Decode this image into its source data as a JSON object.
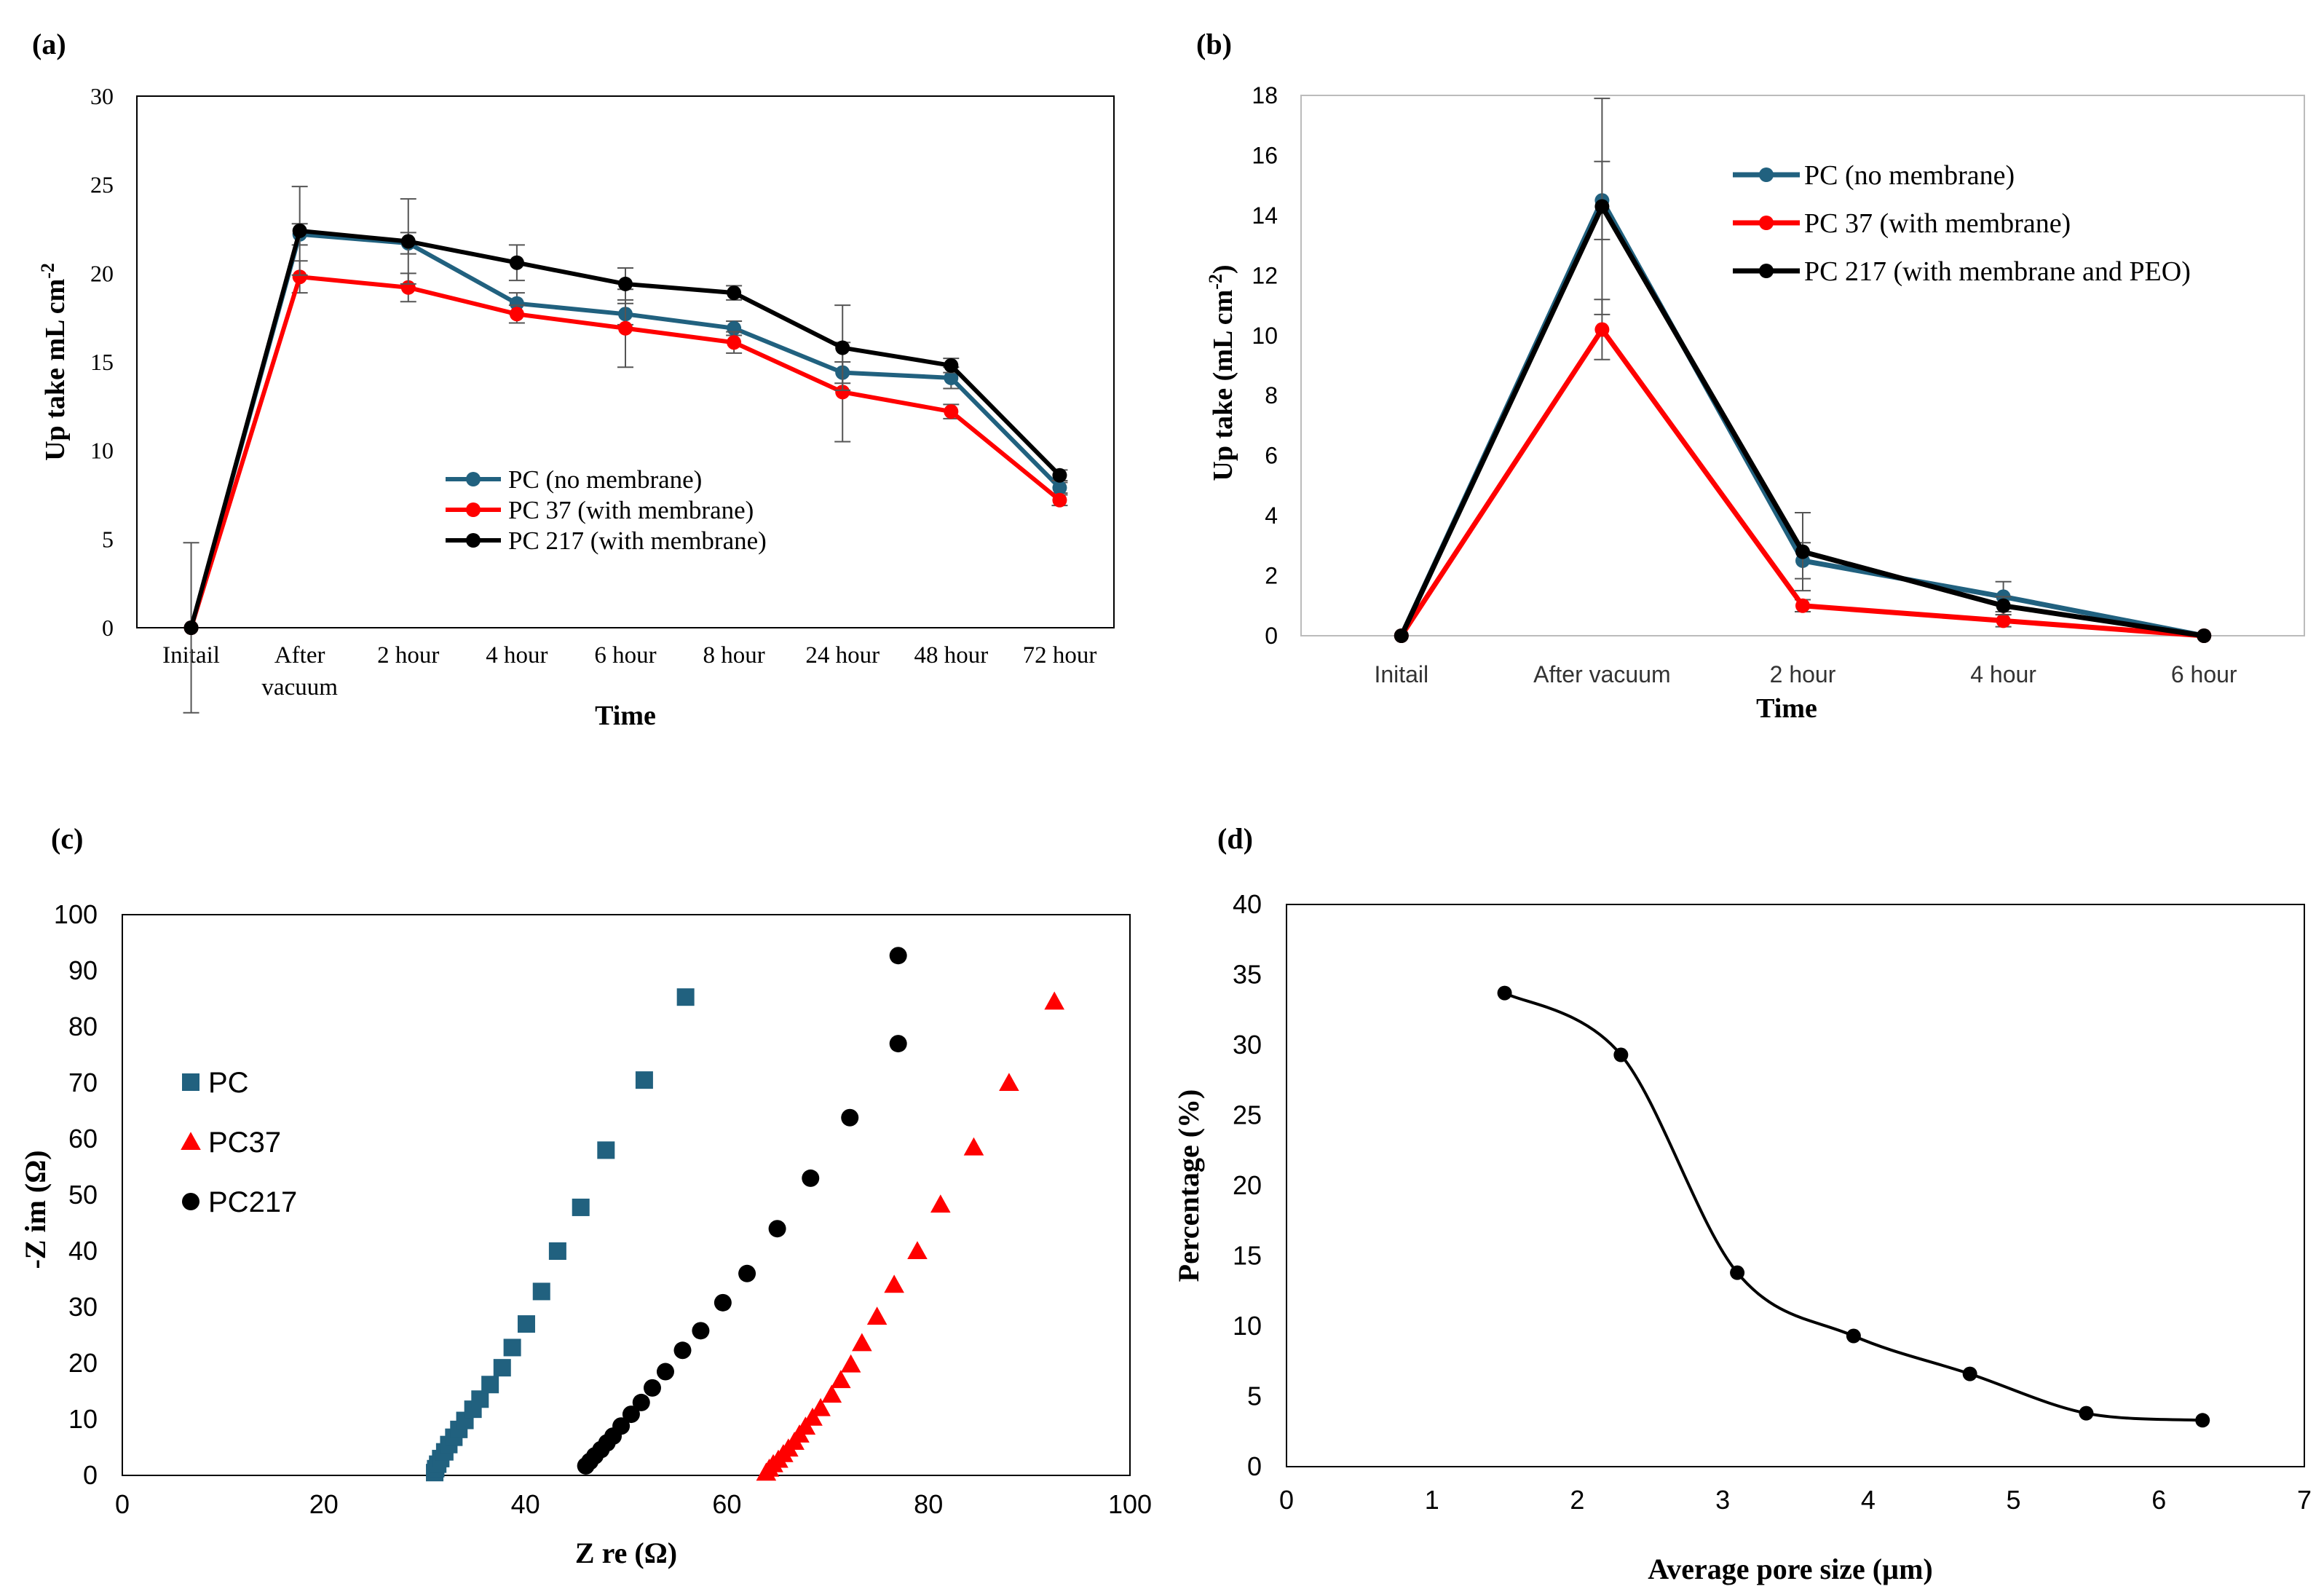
{
  "panels": {
    "a": {
      "label": "(a)"
    },
    "b": {
      "label": "(b)"
    },
    "c": {
      "label": "(c)"
    },
    "d": {
      "label": "(d)"
    }
  },
  "colors": {
    "pc": "#21617f",
    "pc37": "#ff0000",
    "pc217": "#000000",
    "axis": "#000000"
  },
  "chart_data": [
    {
      "id": "a",
      "type": "line",
      "title": "",
      "xlabel": "Time",
      "ylabel": "Up take mL cm",
      "ylabel_sup": "-2",
      "categories": [
        "Initail",
        "After vacuum",
        "2 hour",
        "4 hour",
        "6 hour",
        "8 hour",
        "24 hour",
        "48 hour",
        "72 hour"
      ],
      "ylim": [
        0,
        30
      ],
      "yticks": [
        0,
        5,
        10,
        15,
        20,
        25,
        30
      ],
      "legend_position": "center-bottom",
      "series": [
        {
          "key": "pc",
          "name": "PC (no membrane)",
          "color": "#21617f",
          "values": [
            0,
            22.2,
            21.7,
            18.3,
            17.7,
            16.9,
            14.4,
            14.1,
            7.9
          ],
          "errors": [
            0,
            0.6,
            0.6,
            0.6,
            0.6,
            0.4,
            0.6,
            0.6,
            0.3
          ]
        },
        {
          "key": "pc37",
          "name": "PC 37 (with membrane)",
          "color": "#ff0000",
          "values": [
            0,
            19.8,
            19.2,
            17.7,
            16.9,
            16.1,
            13.3,
            12.2,
            7.2
          ],
          "errors": [
            0,
            0.9,
            0.8,
            0.5,
            2.2,
            0.6,
            2.8,
            0.4,
            0.3
          ]
        },
        {
          "key": "pc217",
          "name": "PC 217 (with membrane)",
          "color": "#000000",
          "values": [
            0,
            22.4,
            21.8,
            20.6,
            19.4,
            18.9,
            15.8,
            14.8,
            8.6
          ],
          "errors": [
            4.8,
            2.5,
            2.4,
            1.0,
            0.9,
            0.4,
            2.4,
            0.4,
            0.3
          ]
        }
      ]
    },
    {
      "id": "b",
      "type": "line",
      "title": "",
      "xlabel": "Time",
      "ylabel": "Up take (mL cm",
      "ylabel_sup": "-2",
      "ylabel_end": ")",
      "categories": [
        "Initail",
        "After vacuum",
        "2 hour",
        "4 hour",
        "6 hour"
      ],
      "ylim": [
        0,
        18
      ],
      "yticks": [
        0,
        2,
        4,
        6,
        8,
        10,
        12,
        14,
        16,
        18
      ],
      "legend_position": "top-center",
      "series": [
        {
          "key": "pc",
          "name": "PC (no membrane)",
          "color": "#21617f",
          "values": [
            0,
            14.5,
            2.5,
            1.3,
            0
          ],
          "errors": [
            0,
            1.3,
            0.6,
            0.5,
            0
          ]
        },
        {
          "key": "pc37",
          "name": "PC 37 (with membrane)",
          "color": "#ff0000",
          "values": [
            0,
            10.2,
            1.0,
            0.5,
            0
          ],
          "errors": [
            0,
            1.0,
            0.2,
            0.2,
            0
          ]
        },
        {
          "key": "pc217",
          "name": "PC 217 (with membrane and PEO)",
          "color": "#000000",
          "values": [
            0,
            14.3,
            2.8,
            1.0,
            0
          ],
          "errors": [
            0,
            3.6,
            1.3,
            0.3,
            0
          ]
        }
      ]
    },
    {
      "id": "c",
      "type": "scatter",
      "title": "",
      "xlabel": "Z re (Ω)",
      "ylabel": "-Z im (Ω)",
      "xlim": [
        0,
        100
      ],
      "ylim": [
        0,
        100
      ],
      "xticks": [
        0,
        20,
        40,
        60,
        80,
        100
      ],
      "yticks": [
        0,
        10,
        20,
        30,
        40,
        50,
        60,
        70,
        80,
        90,
        100
      ],
      "legend_position": "left-center",
      "series": [
        {
          "key": "pc",
          "name": "PC",
          "marker": "square",
          "color": "#21617f",
          "x": [
            31.0,
            31.1,
            31.3,
            31.6,
            32.0,
            32.4,
            32.9,
            33.4,
            34.0,
            34.8,
            35.5,
            36.5,
            37.7,
            38.7,
            40.1,
            41.6,
            43.2,
            45.5,
            48.0,
            51.8,
            55.9
          ],
          "y": [
            0.5,
            1.2,
            2.0,
            3.0,
            4.2,
            5.5,
            6.8,
            8.2,
            9.8,
            11.8,
            13.6,
            16.2,
            19.2,
            22.8,
            27.0,
            32.8,
            40.0,
            47.8,
            58.0,
            70.5,
            85.3
          ]
        },
        {
          "key": "pc37",
          "name": "PC37",
          "marker": "triangle",
          "color": "#ff0000",
          "x": [
            63.9,
            64.2,
            64.6,
            65.1,
            65.6,
            66.1,
            66.7,
            67.2,
            67.8,
            68.5,
            69.3,
            70.4,
            71.3,
            72.3,
            73.4,
            74.9,
            76.6,
            78.9,
            81.2,
            84.5,
            88.0,
            92.5
          ],
          "y": [
            0.5,
            1.2,
            2.0,
            2.8,
            3.8,
            4.8,
            6.0,
            7.3,
            8.7,
            10.3,
            12.0,
            14.4,
            17.0,
            19.8,
            23.6,
            28.3,
            34.0,
            40.0,
            48.3,
            58.5,
            70.0,
            84.5
          ]
        },
        {
          "key": "pc217",
          "name": "PC217",
          "marker": "circle",
          "color": "#000000",
          "x": [
            46.0,
            46.4,
            46.9,
            47.5,
            48.1,
            48.7,
            49.5,
            50.5,
            51.5,
            52.6,
            53.9,
            55.6,
            57.4,
            59.6,
            62.0,
            65.0,
            68.3,
            72.2,
            77.0
          ],
          "y": [
            1.7,
            2.5,
            3.5,
            4.6,
            5.8,
            7.0,
            8.8,
            10.9,
            13.0,
            15.6,
            18.5,
            22.3,
            25.8,
            30.8,
            36.0,
            44.0,
            53.0,
            63.8,
            77.0
          ]
        }
      ],
      "extra_points": [
        {
          "x": 77.0,
          "y": 92.7,
          "series": "pc217"
        }
      ]
    },
    {
      "id": "d",
      "type": "line",
      "title": "",
      "xlabel": "Average pore size (µm)",
      "ylabel": "Percentage (%)",
      "xlim": [
        0,
        7
      ],
      "ylim": [
        0,
        40
      ],
      "xticks": [
        0,
        1,
        2,
        3,
        4,
        5,
        6,
        7
      ],
      "yticks": [
        0,
        5,
        10,
        15,
        20,
        25,
        30,
        35,
        40
      ],
      "smooth": true,
      "series": [
        {
          "key": "pct",
          "name": "Percentage",
          "color": "#000000",
          "x": [
            1.5,
            2.3,
            3.1,
            3.9,
            4.7,
            5.5,
            6.3
          ],
          "y": [
            33.7,
            29.3,
            13.8,
            9.3,
            6.6,
            3.8,
            3.3
          ]
        }
      ]
    }
  ]
}
